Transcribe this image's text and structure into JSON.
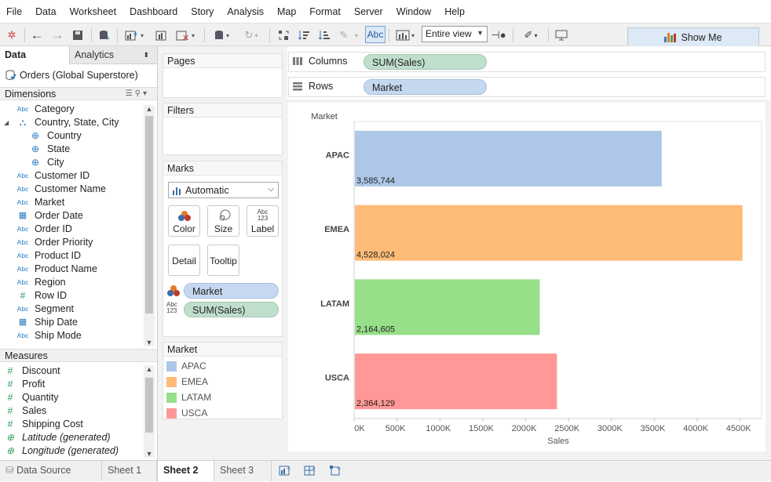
{
  "menu": [
    "File",
    "Data",
    "Worksheet",
    "Dashboard",
    "Story",
    "Analysis",
    "Map",
    "Format",
    "Server",
    "Window",
    "Help"
  ],
  "toolbar": {
    "view_size": "Entire view",
    "abc_label": "Abc",
    "show_me": "Show Me"
  },
  "left_tabs": {
    "data": "Data",
    "analytics": "Analytics"
  },
  "data_source": "Orders (Global Superstore)",
  "dimensions_header": "Dimensions",
  "dimensions": [
    {
      "label": "Category",
      "icon": "Abc"
    },
    {
      "label": "Country, State, City",
      "icon": "hierarchy"
    },
    {
      "label": "Country",
      "icon": "globe"
    },
    {
      "label": "State",
      "icon": "globe"
    },
    {
      "label": "City",
      "icon": "globe"
    },
    {
      "label": "Customer ID",
      "icon": "Abc"
    },
    {
      "label": "Customer Name",
      "icon": "Abc"
    },
    {
      "label": "Market",
      "icon": "Abc"
    },
    {
      "label": "Order Date",
      "icon": "calendar"
    },
    {
      "label": "Order ID",
      "icon": "Abc"
    },
    {
      "label": "Order Priority",
      "icon": "Abc"
    },
    {
      "label": "Product ID",
      "icon": "Abc"
    },
    {
      "label": "Product Name",
      "icon": "Abc"
    },
    {
      "label": "Region",
      "icon": "Abc"
    },
    {
      "label": "Row ID",
      "icon": "#"
    },
    {
      "label": "Segment",
      "icon": "Abc"
    },
    {
      "label": "Ship Date",
      "icon": "calendar"
    },
    {
      "label": "Ship Mode",
      "icon": "Abc"
    }
  ],
  "measures_header": "Measures",
  "measures": [
    {
      "label": "Discount",
      "icon": "#"
    },
    {
      "label": "Profit",
      "icon": "#"
    },
    {
      "label": "Quantity",
      "icon": "#"
    },
    {
      "label": "Sales",
      "icon": "#"
    },
    {
      "label": "Shipping Cost",
      "icon": "#"
    },
    {
      "label": "Latitude (generated)",
      "icon": "globe"
    },
    {
      "label": "Longitude (generated)",
      "icon": "globe"
    }
  ],
  "cards": {
    "pages": "Pages",
    "filters": "Filters",
    "marks": "Marks",
    "mark_type": "Automatic",
    "mark_buttons": [
      "Color",
      "Size",
      "Label",
      "Detail",
      "Tooltip"
    ],
    "marks_pills": [
      "Market",
      "SUM(Sales)"
    ],
    "legend_title": "Market"
  },
  "shelves": {
    "columns_label": "Columns",
    "columns_pill": "SUM(Sales)",
    "rows_label": "Rows",
    "rows_pill": "Market"
  },
  "chart_data": {
    "type": "bar",
    "orientation": "horizontal",
    "row_header": "Market",
    "categories": [
      "APAC",
      "EMEA",
      "LATAM",
      "USCA"
    ],
    "values": [
      3585744,
      4528024,
      2164605,
      2364129
    ],
    "data_labels": [
      "3,585,744",
      "4,528,024",
      "2,164,605",
      "2,364,129"
    ],
    "colors": [
      "#aec7e8",
      "#ffbb78",
      "#98df8a",
      "#ff9896"
    ],
    "xlabel": "Sales",
    "ticks": [
      "0K",
      "500K",
      "1000K",
      "1500K",
      "2000K",
      "2500K",
      "3000K",
      "3500K",
      "4000K",
      "4500K"
    ],
    "xlim": [
      0,
      4750000
    ],
    "grid": false
  },
  "sheets": [
    "Data Source",
    "Sheet 1",
    "Sheet 2",
    "Sheet 3"
  ],
  "active_sheet": "Sheet 2"
}
